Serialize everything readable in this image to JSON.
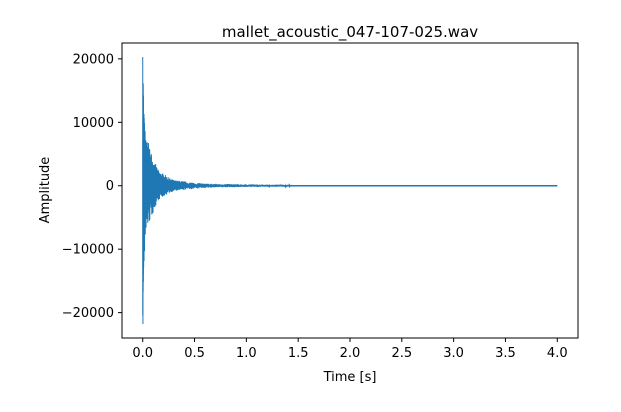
{
  "chart_data": {
    "type": "line",
    "title": "mallet_acoustic_047-107-025.wav",
    "xlabel": "Time [s]",
    "ylabel": "Amplitude",
    "xlim": [
      -0.2,
      4.2
    ],
    "ylim": [
      -24000,
      22500
    ],
    "x_ticks": [
      0.0,
      0.5,
      1.0,
      1.5,
      2.0,
      2.5,
      3.0,
      3.5,
      4.0
    ],
    "x_tick_labels": [
      "0.0",
      "0.5",
      "1.0",
      "1.5",
      "2.0",
      "2.5",
      "3.0",
      "3.5",
      "4.0"
    ],
    "y_ticks": [
      20000,
      10000,
      0,
      -10000,
      -20000
    ],
    "y_tick_labels": [
      "20000",
      "10000",
      "0",
      "−10000",
      "−20000"
    ],
    "grid": false,
    "series": [
      {
        "color": "#1f77b4",
        "envelope": {
          "t": [
            0.0,
            0.005,
            0.01,
            0.02,
            0.03,
            0.05,
            0.07,
            0.1,
            0.12,
            0.15,
            0.2,
            0.25,
            0.3,
            0.4,
            0.5,
            0.6,
            0.8,
            1.0,
            1.2,
            1.44,
            1.45,
            4.0
          ],
          "upper": [
            20300,
            19000,
            12500,
            9500,
            7400,
            7000,
            6000,
            4600,
            3600,
            2500,
            1900,
            1300,
            900,
            700,
            500,
            350,
            280,
            220,
            180,
            150,
            60,
            60
          ],
          "lower": [
            -21800,
            -19500,
            -15000,
            -9500,
            -7000,
            -6300,
            -5600,
            -4300,
            -3400,
            -2300,
            -1700,
            -1200,
            -850,
            -650,
            -500,
            -330,
            -260,
            -200,
            -170,
            -140,
            -60,
            -60
          ]
        }
      }
    ]
  }
}
